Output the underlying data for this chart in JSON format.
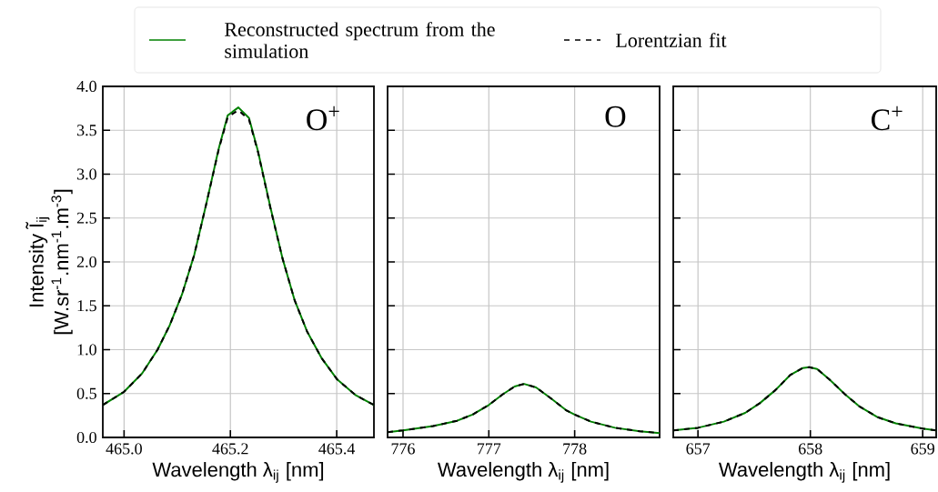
{
  "chart_data": [
    {
      "type": "line",
      "xlabel": "Wavelength λ$_{ij}$ [nm]",
      "ylabel": "Intensity Ĩ$_{ij}$ [W.sr$^{-1}$.nm$^{-1}$.m$^{-3}$]",
      "annotations": [
        "O$^{+}$"
      ],
      "grid": true,
      "legend": "top",
      "xlim": [
        464.96,
        465.47
      ],
      "ylim": [
        0,
        4
      ],
      "xticks": [
        {
          "value": 465.0,
          "label": "465.0"
        },
        {
          "value": 465.2,
          "label": "465.2"
        },
        {
          "value": 465.4,
          "label": "465.4"
        }
      ],
      "yticks": [
        {
          "value": 0,
          "label": "0.0"
        },
        {
          "value": 0.5,
          "label": "0.5"
        },
        {
          "value": 1,
          "label": "1.0"
        },
        {
          "value": 1.5,
          "label": "1.5"
        },
        {
          "value": 2,
          "label": "2.0"
        },
        {
          "value": 2.5,
          "label": "2.5"
        },
        {
          "value": 3,
          "label": "3.0"
        },
        {
          "value": 3.5,
          "label": "3.5"
        },
        {
          "value": 4,
          "label": "4.0"
        }
      ],
      "x": [
        464.96,
        465.0,
        465.034,
        465.063,
        465.086,
        465.109,
        465.132,
        465.155,
        465.178,
        465.195,
        465.215,
        465.235,
        465.252,
        465.275,
        465.298,
        465.321,
        465.344,
        465.372,
        465.401,
        465.436,
        465.47
      ],
      "series": [
        {
          "name": "Reconstructed spectrum from the simulation",
          "color": "#008000",
          "line_style": "solid",
          "values": [
            0.37,
            0.52,
            0.73,
            1.0,
            1.28,
            1.63,
            2.08,
            2.67,
            3.29,
            3.67,
            3.76,
            3.64,
            3.26,
            2.63,
            2.04,
            1.56,
            1.21,
            0.9,
            0.66,
            0.48,
            0.37
          ]
        },
        {
          "name": "Lorentzian fit",
          "color": "#000000",
          "line_style": "dashed",
          "values": [
            0.37,
            0.52,
            0.73,
            1.0,
            1.28,
            1.63,
            2.08,
            2.67,
            3.28,
            3.65,
            3.73,
            3.62,
            3.25,
            2.62,
            2.04,
            1.56,
            1.21,
            0.9,
            0.66,
            0.48,
            0.37
          ]
        }
      ]
    },
    {
      "type": "line",
      "xlabel": "Wavelength λ$_{ij}$ [nm]",
      "annotations": [
        "O"
      ],
      "grid": true,
      "tick_labels": "x",
      "xlim": [
        775.82,
        778.99
      ],
      "ylim": [
        0,
        4
      ],
      "xticks": [
        776,
        777,
        778
      ],
      "yticks": [
        {
          "value": 0,
          "label": null
        },
        {
          "value": 0.5,
          "label": null
        },
        {
          "value": 1,
          "label": null
        },
        {
          "value": 1.5,
          "label": null
        },
        {
          "value": 2,
          "label": null
        },
        {
          "value": 2.5,
          "label": null
        },
        {
          "value": 3,
          "label": null
        },
        {
          "value": 3.5,
          "label": null
        },
        {
          "value": 4,
          "label": null
        }
      ],
      "x": [
        775.82,
        776.0,
        776.35,
        776.63,
        776.81,
        777.0,
        777.16,
        777.3,
        777.41,
        777.55,
        777.73,
        777.9,
        778.0,
        778.19,
        778.47,
        778.76,
        778.99
      ],
      "series": [
        {
          "color": "#008000",
          "line_style": "solid",
          "values": [
            0.06,
            0.08,
            0.13,
            0.19,
            0.26,
            0.37,
            0.49,
            0.58,
            0.61,
            0.57,
            0.44,
            0.31,
            0.26,
            0.18,
            0.11,
            0.07,
            0.05
          ]
        },
        {
          "color": "#000000",
          "line_style": "dashed",
          "values": [
            0.06,
            0.08,
            0.13,
            0.19,
            0.26,
            0.37,
            0.49,
            0.58,
            0.61,
            0.57,
            0.44,
            0.31,
            0.26,
            0.18,
            0.11,
            0.07,
            0.05
          ]
        }
      ]
    },
    {
      "type": "line",
      "xlabel": "Wavelength λ$_{ij}$ [nm]",
      "annotations": [
        "C$^{+}$"
      ],
      "grid": true,
      "tick_labels": "x",
      "xlim": [
        656.78,
        659.12
      ],
      "ylim": [
        0,
        4
      ],
      "xticks": [
        657,
        658,
        659
      ],
      "yticks": [
        {
          "value": 0,
          "label": null
        },
        {
          "value": 0.5,
          "label": null
        },
        {
          "value": 1,
          "label": null
        },
        {
          "value": 1.5,
          "label": null
        },
        {
          "value": 2,
          "label": null
        },
        {
          "value": 2.5,
          "label": null
        },
        {
          "value": 3,
          "label": null
        },
        {
          "value": 3.5,
          "label": null
        },
        {
          "value": 4,
          "label": null
        }
      ],
      "x": [
        656.78,
        657.0,
        657.23,
        657.42,
        657.55,
        657.69,
        657.82,
        657.93,
        657.99,
        658.06,
        658.17,
        658.31,
        658.44,
        658.6,
        658.76,
        659.0,
        659.12
      ],
      "series": [
        {
          "color": "#008000",
          "line_style": "solid",
          "values": [
            0.08,
            0.11,
            0.18,
            0.28,
            0.39,
            0.54,
            0.71,
            0.79,
            0.8,
            0.78,
            0.66,
            0.49,
            0.35,
            0.23,
            0.16,
            0.1,
            0.08
          ]
        },
        {
          "color": "#000000",
          "line_style": "dashed",
          "values": [
            0.08,
            0.11,
            0.18,
            0.28,
            0.39,
            0.54,
            0.71,
            0.79,
            0.8,
            0.78,
            0.66,
            0.49,
            0.35,
            0.23,
            0.16,
            0.1,
            0.08
          ]
        }
      ]
    }
  ]
}
